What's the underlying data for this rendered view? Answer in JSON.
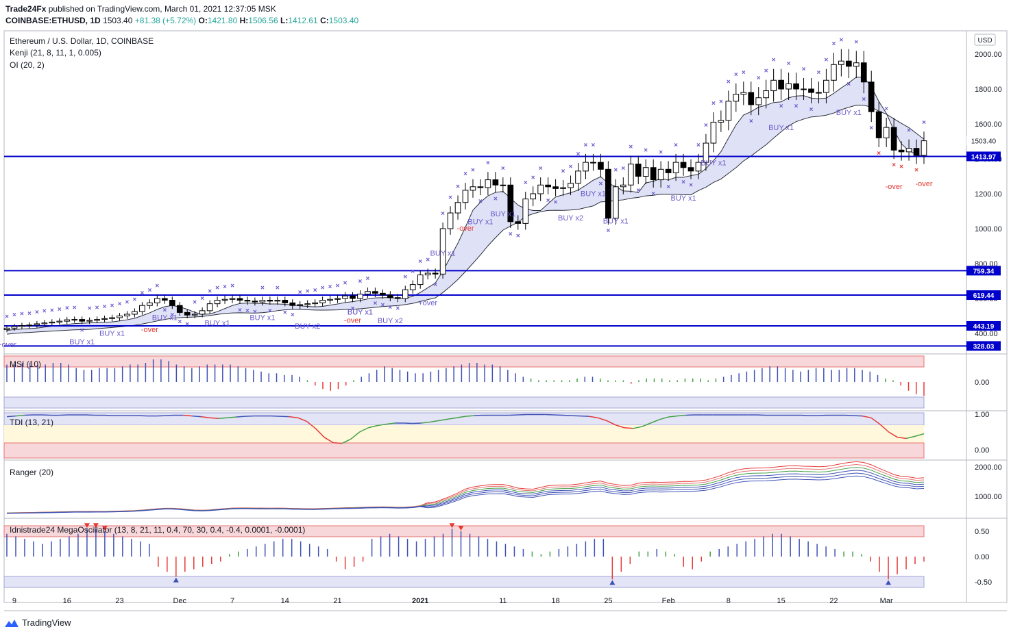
{
  "header": {
    "publisher": "Trade24Fx",
    "published_text": "published on TradingView.com, March 01, 2021 12:37:05 MSK",
    "symbol": "COINBASE:ETHUSD, 1D",
    "last": "1503.40",
    "change": "+81.38 (+5.72%)",
    "o_label": "O:",
    "o": "1421.80",
    "h_label": "H:",
    "h": "1506.56",
    "l_label": "L:",
    "l": "1412.61",
    "c_label": "C:",
    "c": "1503.40"
  },
  "legend": {
    "title": "Ethereum / U.S. Dollar, 1D, COINBASE",
    "ind1": "Kenji (21, 8, 11, 1, 0.005)",
    "ind2": "OI (20, 2)"
  },
  "panes": {
    "msi": "MSI (10)",
    "tdi": "TDI (13, 21)",
    "ranger": "Ranger (20)",
    "mega": "Idnistrade24 MegaOscillator (13, 8, 21, 11, 0.4, 70, 30, 0.4, -0.4, 0.0001, -0.0001)"
  },
  "footer": {
    "brand": "TradingView"
  },
  "colors": {
    "up": "#ffffff",
    "down": "#000000",
    "level": "#0000cc",
    "marker": "#6a5acd",
    "sell": "#e53935"
  },
  "chart_data": {
    "type": "candlestick",
    "currency": "USD",
    "price_axis_ticks": [
      400,
      600,
      800,
      1000,
      1200,
      1400,
      1600,
      1800,
      2000
    ],
    "price_axis_labels": [
      "400.00",
      "600.00",
      "800.00",
      "1000.00",
      "1200.00",
      "1400.00",
      "1600.00",
      "1800.00",
      "2000.00"
    ],
    "last_price_label": "1503.40",
    "horizontal_levels": [
      1413.97,
      759.34,
      619.44,
      443.19,
      328.03
    ],
    "horizontal_level_labels": [
      "1413.97",
      "759.34",
      "619.44",
      "443.19",
      "328.03"
    ],
    "x_axis_labels": [
      "9",
      "16",
      "23",
      "Dec",
      "7",
      "14",
      "21",
      "2021",
      "11",
      "18",
      "25",
      "Feb",
      "8",
      "15",
      "22",
      "Mar"
    ],
    "x_axis_label_day_index": [
      1,
      8,
      15,
      23,
      30,
      37,
      44,
      55,
      66,
      73,
      80,
      88,
      96,
      103,
      110,
      117
    ],
    "close": [
      430,
      440,
      445,
      448,
      455,
      460,
      465,
      470,
      478,
      480,
      470,
      475,
      480,
      485,
      490,
      500,
      510,
      525,
      560,
      575,
      600,
      590,
      560,
      520,
      505,
      510,
      530,
      570,
      590,
      595,
      600,
      590,
      585,
      580,
      590,
      585,
      590,
      575,
      560,
      565,
      570,
      575,
      590,
      595,
      600,
      615,
      600,
      625,
      640,
      630,
      620,
      605,
      600,
      650,
      680,
      735,
      745,
      740,
      1000,
      1090,
      1150,
      1220,
      1240,
      1235,
      1280,
      1250,
      1250,
      1040,
      1030,
      1170,
      1200,
      1250,
      1240,
      1230,
      1235,
      1260,
      1330,
      1380,
      1380,
      1340,
      1060,
      1240,
      1250,
      1370,
      1300,
      1350,
      1280,
      1340,
      1320,
      1380,
      1350,
      1330,
      1380,
      1490,
      1610,
      1620,
      1730,
      1770,
      1780,
      1710,
      1750,
      1790,
      1850,
      1800,
      1830,
      1800,
      1800,
      1780,
      1780,
      1850,
      1940,
      1960,
      1930,
      1950,
      1840,
      1670,
      1520,
      1580,
      1450,
      1440,
      1460,
      1420,
      1503.4
    ],
    "msi_values": [
      0.5,
      0.5,
      0.55,
      0.55,
      0.5,
      0.5,
      0.55,
      0.55,
      0.5,
      0.4,
      0.35,
      0.35,
      0.4,
      0.4,
      0.4,
      0.45,
      0.5,
      0.5,
      0.55,
      0.65,
      0.65,
      0.6,
      0.5,
      0.45,
      0.4,
      0.45,
      0.5,
      0.5,
      0.5,
      0.5,
      0.45,
      0.4,
      0.35,
      0.3,
      0.25,
      0.25,
      0.2,
      0.2,
      0.15,
      0.05,
      -0.1,
      -0.2,
      -0.25,
      -0.2,
      -0.1,
      0.05,
      0.15,
      0.25,
      0.35,
      0.45,
      0.4,
      0.35,
      0.3,
      0.25,
      0.25,
      0.3,
      0.35,
      0.4,
      0.45,
      0.5,
      0.55,
      0.55,
      0.5,
      0.5,
      0.45,
      0.35,
      0.25,
      0.15,
      0.1,
      0.05,
      0.05,
      0.05,
      0.05,
      0.05,
      0.1,
      0.15,
      0.15,
      0.1,
      0.05,
      0.05,
      0.05,
      -0.05,
      0.05,
      0.1,
      0.1,
      0.1,
      0.05,
      0.05,
      0.1,
      0.1,
      0.1,
      0.05,
      0.1,
      0.15,
      0.2,
      0.25,
      0.3,
      0.35,
      0.4,
      0.45,
      0.45,
      0.4,
      0.35,
      0.3,
      0.35,
      0.4,
      0.4,
      0.35,
      0.35,
      0.4,
      0.4,
      0.35,
      0.3,
      0.2,
      0.1,
      0.05,
      -0.1,
      -0.25,
      -0.35,
      -0.4
    ],
    "tdi_values": [
      0.93,
      0.95,
      0.97,
      0.98,
      0.98,
      0.97,
      0.97,
      0.98,
      0.98,
      0.98,
      0.97,
      0.97,
      0.96,
      0.96,
      0.96,
      0.96,
      0.95,
      0.95,
      0.96,
      0.97,
      0.97,
      0.95,
      0.93,
      0.9,
      0.88,
      0.9,
      0.92,
      0.94,
      0.95,
      0.95,
      0.95,
      0.94,
      0.93,
      0.9,
      0.8,
      0.6,
      0.35,
      0.2,
      0.18,
      0.3,
      0.5,
      0.62,
      0.68,
      0.72,
      0.75,
      0.75,
      0.74,
      0.75,
      0.78,
      0.82,
      0.86,
      0.9,
      0.94,
      0.96,
      0.97,
      0.97,
      0.97,
      0.97,
      0.98,
      0.99,
      0.99,
      0.99,
      0.98,
      0.97,
      0.96,
      0.95,
      0.94,
      0.9,
      0.82,
      0.7,
      0.62,
      0.6,
      0.65,
      0.75,
      0.85,
      0.92,
      0.95,
      0.97,
      0.98,
      0.98,
      0.98,
      0.98,
      0.98,
      0.98,
      0.98,
      0.98,
      0.97,
      0.97,
      0.97,
      0.97,
      0.97,
      0.96,
      0.96,
      0.97,
      0.97,
      0.97,
      0.96,
      0.95,
      0.9,
      0.72,
      0.5,
      0.35,
      0.32,
      0.38,
      0.45
    ],
    "mega_values": [
      0.45,
      0.4,
      0.35,
      0.3,
      0.25,
      0.3,
      0.35,
      0.4,
      0.45,
      0.55,
      0.55,
      0.5,
      0.45,
      0.4,
      0.35,
      0.3,
      0.25,
      -0.2,
      -0.3,
      -0.4,
      -0.3,
      -0.25,
      -0.2,
      -0.15,
      -0.1,
      0.05,
      0.1,
      0.15,
      0.2,
      0.25,
      0.3,
      0.35,
      0.35,
      0.3,
      0.25,
      0.2,
      0.15,
      -0.1,
      -0.25,
      -0.2,
      -0.1,
      0.35,
      0.4,
      0.45,
      0.4,
      0.35,
      0.3,
      0.35,
      0.4,
      0.45,
      0.55,
      0.5,
      0.45,
      0.4,
      0.35,
      0.3,
      0.25,
      0.2,
      0.15,
      0.1,
      0.05,
      0.1,
      0.15,
      0.2,
      0.25,
      0.3,
      0.35,
      0.35,
      -0.45,
      -0.3,
      -0.15,
      0.1,
      0.1,
      0.15,
      0.1,
      0.05,
      -0.2,
      -0.25,
      -0.1,
      0.1,
      0.15,
      0.2,
      0.25,
      0.3,
      0.35,
      0.4,
      0.45,
      0.45,
      0.4,
      0.35,
      0.3,
      0.25,
      0.2,
      0.15,
      0.1,
      0.1,
      0.05,
      -0.1,
      -0.3,
      -0.45,
      -0.35,
      -0.25,
      -0.15,
      -0.1
    ],
    "msi_axis_labels": [
      "0.00"
    ],
    "tdi_axis_labels": [
      "1.00",
      "0.00"
    ],
    "ranger_axis_labels": [
      "2000.00",
      "1000.00"
    ],
    "mega_axis_labels": [
      "0.50",
      "0.00",
      "-0.50"
    ],
    "signal_labels": [
      "+over",
      "BUY x1",
      "BUY x1",
      "-over",
      "BUY x1",
      "BUY x1",
      "BUY x1",
      "BUY x2",
      "BUY x1",
      "BUY x2",
      "BUY x1",
      "+over",
      "BUY x1",
      "BUY x1",
      "BUY x1",
      "-over",
      "-over",
      "BUY x2",
      "BUY x1",
      "BUY x1",
      "BUY x1",
      "BUY x1",
      "BUY x1",
      "BUY x1",
      "-over",
      "-over"
    ]
  }
}
